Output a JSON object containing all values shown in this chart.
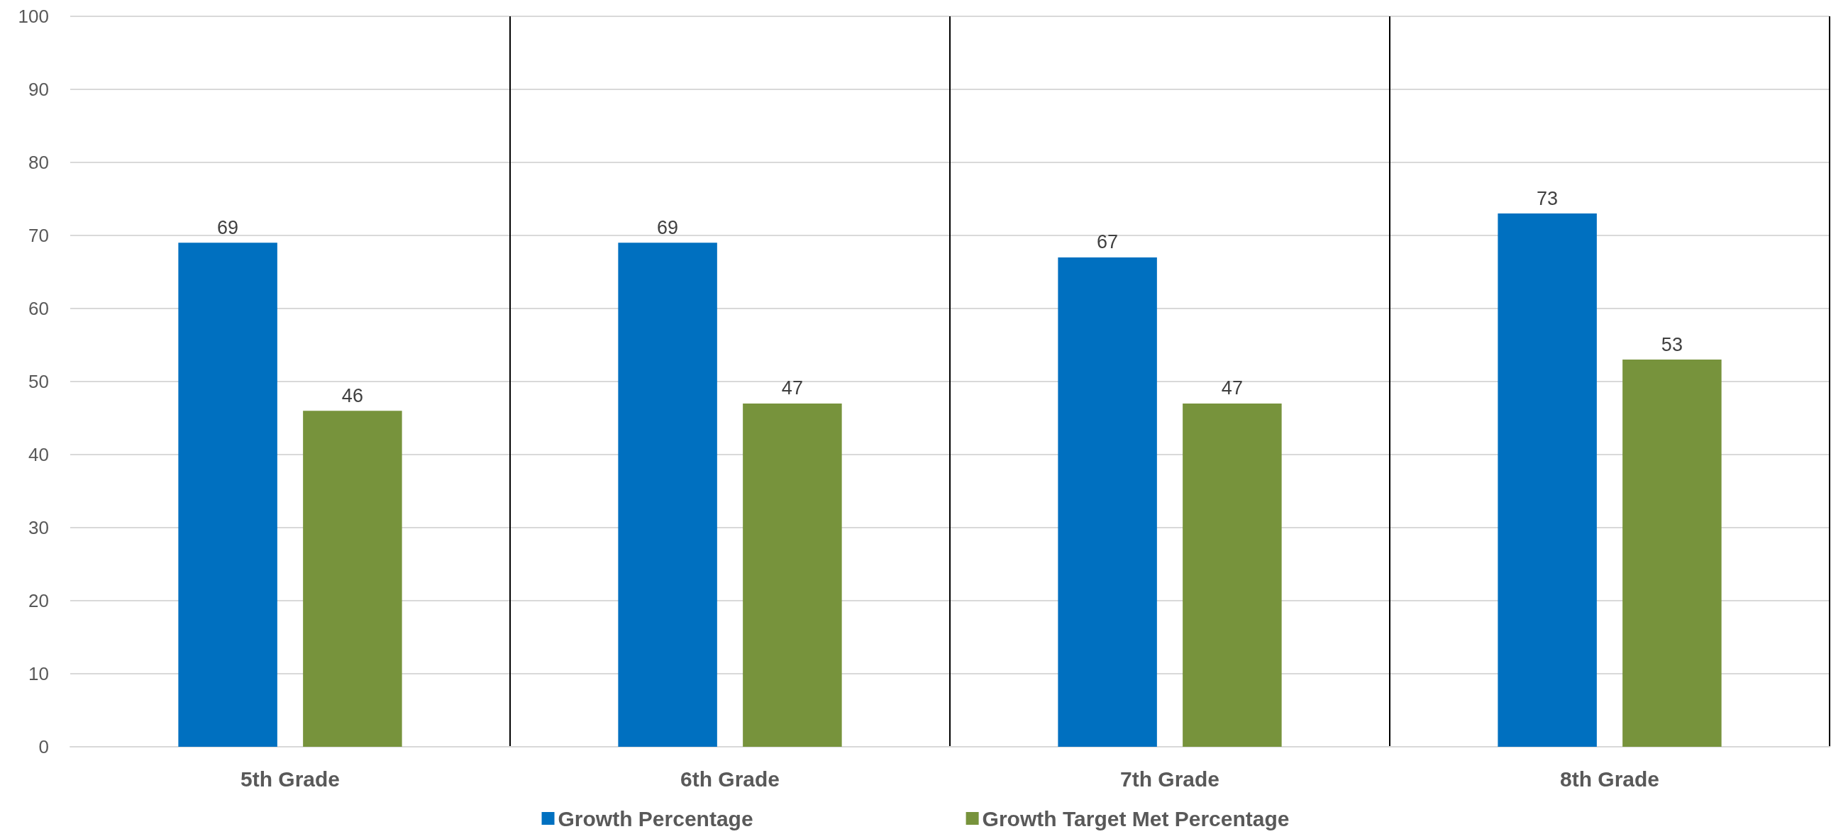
{
  "chart_data": {
    "type": "bar",
    "categories": [
      "5th Grade",
      "6th Grade",
      "7th Grade",
      "8th Grade"
    ],
    "series": [
      {
        "name": "Growth Percentage",
        "color": "#0070c0",
        "values": [
          69,
          69,
          67,
          73
        ]
      },
      {
        "name": "Growth Target Met Percentage",
        "color": "#77933c",
        "values": [
          46,
          47,
          47,
          53
        ]
      }
    ],
    "ylim": [
      0,
      100
    ],
    "yticks": [
      0,
      10,
      20,
      30,
      40,
      50,
      60,
      70,
      80,
      90,
      100
    ],
    "grid": true,
    "legend": "bottom",
    "data_labels": true
  }
}
